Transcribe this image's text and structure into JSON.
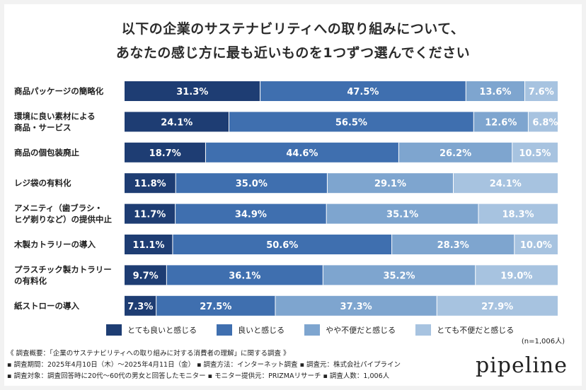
{
  "title_lines": [
    "以下の企業のサステナビリティへの取り組みについて、",
    "あなたの感じ方に最も近いものを1つずつ選んでください"
  ],
  "colors": [
    "#1e3d73",
    "#3f6faf",
    "#7ea5cf",
    "#a7c3e0"
  ],
  "chart_data": {
    "type": "bar",
    "orientation": "horizontal-stacked-100",
    "categories": [
      [
        "商品パッケージの簡略化"
      ],
      [
        "環境に良い素材による",
        "商品・サービス"
      ],
      [
        "商品の個包装廃止"
      ],
      [
        "レジ袋の有料化"
      ],
      [
        "アメニティ（歯ブラシ・",
        "ヒゲ剃りなど）の提供中止"
      ],
      [
        "木製カトラリーの導入"
      ],
      [
        "プラスチック製カトラリー",
        "の有料化"
      ],
      [
        "紙ストローの導入"
      ]
    ],
    "series": [
      {
        "name": "とても良いと感じる",
        "values": [
          31.3,
          24.1,
          18.7,
          11.8,
          11.7,
          11.1,
          9.7,
          7.3
        ]
      },
      {
        "name": "良いと感じる",
        "values": [
          47.5,
          56.5,
          44.6,
          35.0,
          34.9,
          50.6,
          36.1,
          27.5
        ]
      },
      {
        "name": "やや不便だと感じる",
        "values": [
          13.6,
          12.6,
          26.2,
          29.1,
          35.1,
          28.3,
          35.2,
          37.3
        ]
      },
      {
        "name": "とても不便だと感じる",
        "values": [
          7.6,
          6.8,
          10.5,
          24.1,
          18.3,
          10.0,
          19.0,
          27.9
        ]
      }
    ],
    "value_labels": [
      [
        "31.3%",
        "47.5%",
        "13.6%",
        "7.6%"
      ],
      [
        "24.1%",
        "56.5%",
        "12.6%",
        "6.8%"
      ],
      [
        "18.7%",
        "44.6%",
        "26.2%",
        "10.5%"
      ],
      [
        "11.8%",
        "35.0%",
        "29.1%",
        "24.1%"
      ],
      [
        "11.7%",
        "34.9%",
        "35.1%",
        "18.3%"
      ],
      [
        "11.1%",
        "50.6%",
        "28.3%",
        "10.0%"
      ],
      [
        "9.7%",
        "36.1%",
        "35.2%",
        "19.0%"
      ],
      [
        "7.3%",
        "27.5%",
        "37.3%",
        "27.9%"
      ]
    ],
    "legend_placement": "bottom",
    "sample_note": "(n=1,006人)"
  },
  "notes": [
    "《 調査概要：「企業のサステナビリティへの取り組みに対する消費者の理解」に関する調査 》",
    "▪ 調査期間：2025年4月10日（木）〜2025年4月11日（金） ▪ 調査方法：インターネット調査 ▪ 調査元：株式会社パイプライン",
    "▪ 調査対象：調査回答時に20代〜60代の男女と回答したモニター ▪ モニター提供元：PRIZMAリサーチ ▪ 調査人数：1,006人"
  ],
  "logo_text": "pipeline"
}
